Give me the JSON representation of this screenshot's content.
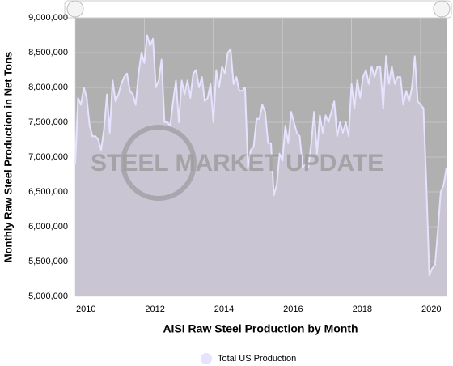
{
  "chart_data": {
    "type": "area",
    "x_label": "AISI Raw Steel Production by Month",
    "y_label": "Monthly Raw Steel Production in Net Tons",
    "watermark": "STEEL MARKET UPDATE",
    "xlim": [
      2010,
      2020.75
    ],
    "xticks": [
      2010,
      2012,
      2014,
      2016,
      2018,
      2020
    ],
    "ylim": [
      5000000,
      9000000
    ],
    "yticks": [
      {
        "value": 5000000,
        "label": "5,000,000"
      },
      {
        "value": 5500000,
        "label": "5,500,000"
      },
      {
        "value": 6000000,
        "label": "6,000,000"
      },
      {
        "value": 6500000,
        "label": "6,500,000"
      },
      {
        "value": 7000000,
        "label": "7,000,000"
      },
      {
        "value": 7500000,
        "label": "7,500,000"
      },
      {
        "value": 8000000,
        "label": "8,000,000"
      },
      {
        "value": 8500000,
        "label": "8,500,000"
      },
      {
        "value": 9000000,
        "label": "9,000,000"
      }
    ],
    "grid": true,
    "legend": "bottom",
    "x": [
      2010,
      2010.083,
      2010.167,
      2010.25,
      2010.333,
      2010.417,
      2010.5,
      2010.583,
      2010.667,
      2010.75,
      2010.833,
      2010.917,
      2011,
      2011.083,
      2011.167,
      2011.25,
      2011.333,
      2011.417,
      2011.5,
      2011.583,
      2011.667,
      2011.75,
      2011.833,
      2011.917,
      2012,
      2012.083,
      2012.167,
      2012.25,
      2012.333,
      2012.417,
      2012.5,
      2012.583,
      2012.667,
      2012.75,
      2012.833,
      2012.917,
      2013,
      2013.083,
      2013.167,
      2013.25,
      2013.333,
      2013.417,
      2013.5,
      2013.583,
      2013.667,
      2013.75,
      2013.833,
      2013.917,
      2014,
      2014.083,
      2014.167,
      2014.25,
      2014.333,
      2014.417,
      2014.5,
      2014.583,
      2014.667,
      2014.75,
      2014.833,
      2014.917,
      2015,
      2015.083,
      2015.167,
      2015.25,
      2015.333,
      2015.417,
      2015.5,
      2015.583,
      2015.667,
      2015.75,
      2015.833,
      2015.917,
      2016,
      2016.083,
      2016.167,
      2016.25,
      2016.333,
      2016.417,
      2016.5,
      2016.583,
      2016.667,
      2016.75,
      2016.833,
      2016.917,
      2017,
      2017.083,
      2017.167,
      2017.25,
      2017.333,
      2017.417,
      2017.5,
      2017.583,
      2017.667,
      2017.75,
      2017.833,
      2017.917,
      2018,
      2018.083,
      2018.167,
      2018.25,
      2018.333,
      2018.417,
      2018.5,
      2018.583,
      2018.667,
      2018.75,
      2018.833,
      2018.917,
      2019,
      2019.083,
      2019.167,
      2019.25,
      2019.333,
      2019.417,
      2019.5,
      2019.583,
      2019.667,
      2019.75,
      2019.833,
      2019.917,
      2020,
      2020.083,
      2020.167,
      2020.25,
      2020.333,
      2020.417,
      2020.5,
      2020.583,
      2020.667,
      2020.75
    ],
    "series": [
      {
        "name": "Total US Production",
        "color": "#e6e2ff",
        "fill": "#c9c5d2",
        "values": [
          6900000,
          7850000,
          7750000,
          8000000,
          7850000,
          7450000,
          7300000,
          7300000,
          7250000,
          7100000,
          7400000,
          7900000,
          7350000,
          8100000,
          7800000,
          7900000,
          8050000,
          8150000,
          8200000,
          7950000,
          7900000,
          7750000,
          8200000,
          8500000,
          8350000,
          8750000,
          8600000,
          8700000,
          8000000,
          8100000,
          8400000,
          7500000,
          7500000,
          7450000,
          7800000,
          8100000,
          7500000,
          8100000,
          7900000,
          8100000,
          7850000,
          8200000,
          8250000,
          8000000,
          8150000,
          7800000,
          7850000,
          8050000,
          7500000,
          8250000,
          8000000,
          8300000,
          8200000,
          8500000,
          8550000,
          8050000,
          8150000,
          7950000,
          7950000,
          8000000,
          6850000,
          7100000,
          7150000,
          7550000,
          7550000,
          7750000,
          7650000,
          7200000,
          7200000,
          6450000,
          6600000,
          7050000,
          6950000,
          7450000,
          7200000,
          7650000,
          7500000,
          7350000,
          7300000,
          6850000,
          6900000,
          6850000,
          7200000,
          7650000,
          7050000,
          7600000,
          7350000,
          7600000,
          7500000,
          7650000,
          7800000,
          7300000,
          7500000,
          7350000,
          7500000,
          7300000,
          8050000,
          7700000,
          8100000,
          7850000,
          8150000,
          8250000,
          8050000,
          8300000,
          8150000,
          8300000,
          8300000,
          7700000,
          8450000,
          8050000,
          8300000,
          8050000,
          8150000,
          8150000,
          7750000,
          7950000,
          7800000,
          8000000,
          8450000,
          7800000,
          7750000,
          7700000,
          6600000,
          5300000,
          5400000,
          5450000,
          5950000,
          6500000,
          6600000,
          6850000
        ]
      }
    ]
  }
}
